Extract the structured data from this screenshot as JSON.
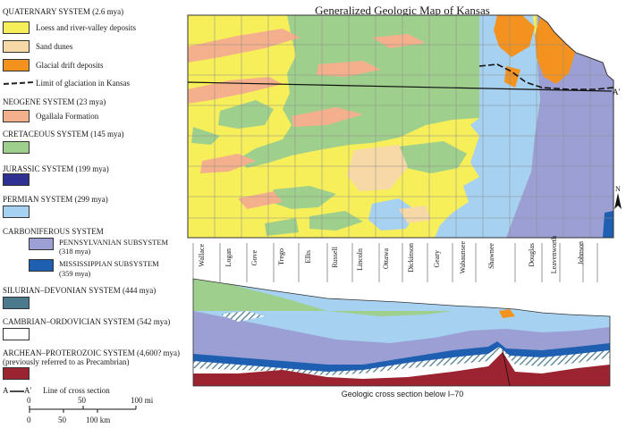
{
  "map_title": "Generalized Geologic Map of Kansas",
  "legend": {
    "quaternary": {
      "heading": "QUATERNARY SYSTEM (2.6 mya)",
      "items": [
        {
          "label": "Loess and river-valley deposits",
          "color": "#f7ef5a"
        },
        {
          "label": "Sand dunes",
          "color": "#f7d9a8"
        },
        {
          "label": "Glacial drift deposits",
          "color": "#f3921f"
        }
      ],
      "glaciation_label": "Limit of glaciation in Kansas"
    },
    "neogene": {
      "heading": "NEOGENE SYSTEM (23 mya)",
      "items": [
        {
          "label": "Ogallala Formation",
          "color": "#f4b08c"
        }
      ]
    },
    "cretaceous": {
      "heading": "CRETACEOUS SYSTEM (145 mya)",
      "color": "#9fcf8c"
    },
    "jurassic": {
      "heading": "JURASSIC SYSTEM (199 mya)",
      "color": "#2e3192"
    },
    "permian": {
      "heading": "PERMIAN SYSTEM (299 mya)",
      "color": "#a6d1f0"
    },
    "carboniferous": {
      "heading": "CARBONIFEROUS SYSTEM",
      "pennsylvanian_line1": "PENNSYLVANIAN SUBSYSTEM",
      "pennsylvanian_line2": "(318 mya)",
      "pennsylvanian_color": "#9b9fd4",
      "mississippian_line1": "MISSISSIPPIAN SUBSYSTEM",
      "mississippian_line2": "(359 mya)",
      "mississippian_color": "#1f5fb2"
    },
    "silurian_devonian": {
      "heading": "SILURIAN–DEVONIAN SYSTEM (444 mya)",
      "color": "#4a7a8c"
    },
    "cambrian_ordovician": {
      "heading": "CAMBRIAN–ORDOVICIAN SYSTEM (542 mya)",
      "color": "#ffffff"
    },
    "archean": {
      "heading": "ARCHEAN–PROTEROZOIC SYSTEM (4,600? mya)",
      "subheading": "(previously referred to as Precambrian)",
      "color": "#9b2430"
    },
    "cross_section_line": {
      "label": "Line of cross section",
      "a": "A",
      "a_prime": "A′"
    }
  },
  "scale": {
    "mi_ticks": [
      "0",
      "50",
      "100 mi"
    ],
    "km_ticks": [
      "0",
      "50",
      "100 km"
    ]
  },
  "map_labels": {
    "a": "A",
    "a_prime": "A′",
    "north": "N"
  },
  "counties": [
    "Wallace",
    "Logan",
    "Gove",
    "Trego",
    "Ellis",
    "Russell",
    "Lincoln",
    "Ottawa",
    "Dickinson",
    "Geary",
    "Wabaunsee",
    "Shawnee",
    "Douglas",
    "Leavenworth",
    "Johnson"
  ],
  "cross_section_title": "Geologic cross section below I–70"
}
